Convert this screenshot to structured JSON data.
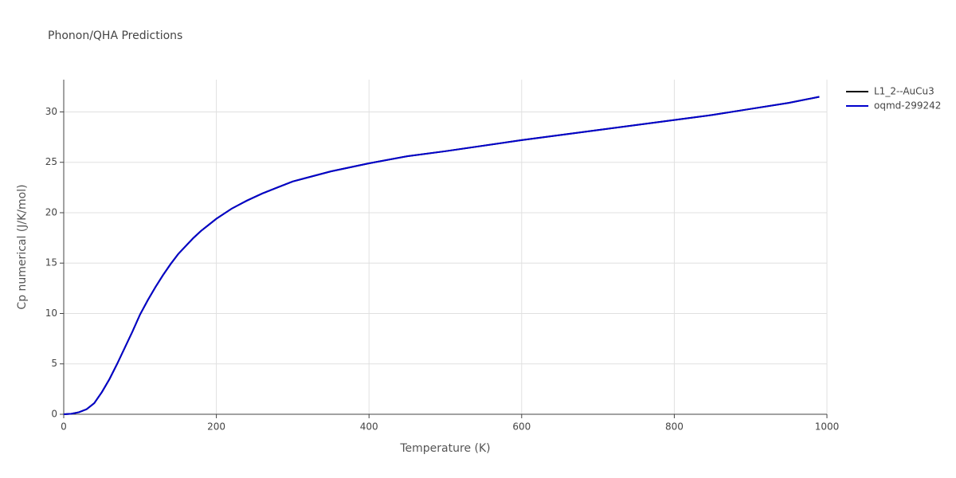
{
  "chart_data": {
    "type": "line",
    "title": "Phonon/QHA Predictions",
    "x_label": "Temperature (K)",
    "y_label": "Cp numerical (J/K/mol)",
    "x": [
      0,
      10,
      20,
      30,
      40,
      50,
      60,
      70,
      80,
      90,
      100,
      110,
      120,
      130,
      140,
      150,
      160,
      170,
      180,
      190,
      200,
      220,
      240,
      260,
      280,
      300,
      350,
      400,
      450,
      500,
      600,
      700,
      800,
      850,
      900,
      950,
      990
    ],
    "series": [
      {
        "name": "L1_2--AuCu3",
        "color": "#000000",
        "values": [
          0,
          0.05,
          0.2,
          0.5,
          1.1,
          2.2,
          3.5,
          5.0,
          6.6,
          8.2,
          9.9,
          11.3,
          12.6,
          13.8,
          14.9,
          15.9,
          16.7,
          17.5,
          18.2,
          18.8,
          19.4,
          20.4,
          21.2,
          21.9,
          22.5,
          23.1,
          24.1,
          24.9,
          25.6,
          26.1,
          27.2,
          28.2,
          29.2,
          29.7,
          30.3,
          30.9,
          31.5
        ]
      },
      {
        "name": "oqmd-299242",
        "color": "#0000cc",
        "values": [
          0,
          0.05,
          0.2,
          0.5,
          1.1,
          2.2,
          3.5,
          5.0,
          6.6,
          8.2,
          9.9,
          11.3,
          12.6,
          13.8,
          14.9,
          15.9,
          16.7,
          17.5,
          18.2,
          18.8,
          19.4,
          20.4,
          21.2,
          21.9,
          22.5,
          23.1,
          24.1,
          24.9,
          25.6,
          26.1,
          27.2,
          28.2,
          29.2,
          29.7,
          30.3,
          30.9,
          31.5
        ]
      }
    ],
    "xlim": [
      0,
      1000
    ],
    "xticks": [
      0,
      200,
      400,
      600,
      800,
      1000
    ],
    "ylim": [
      0,
      33.2
    ],
    "yticks": [
      0,
      5,
      10,
      15,
      20,
      25,
      30
    ],
    "grid": true,
    "legend": "top-right"
  }
}
